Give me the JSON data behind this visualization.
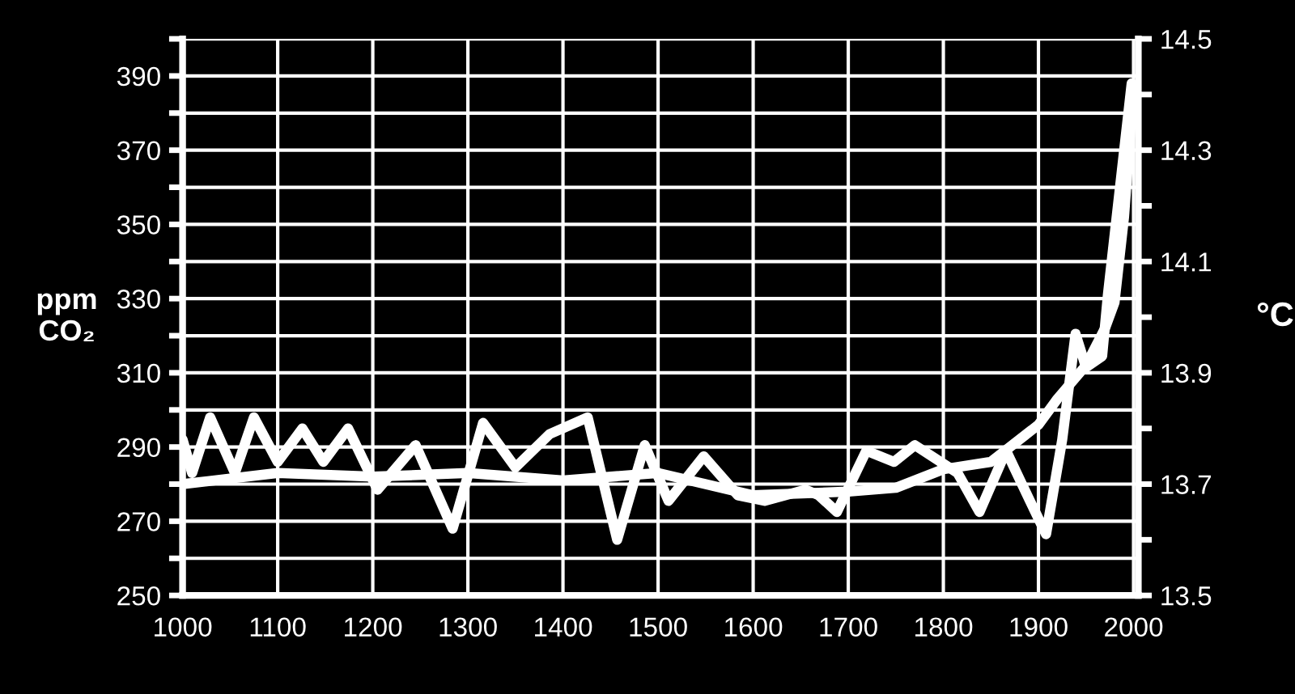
{
  "chart_data": {
    "type": "line",
    "ylabel": "ppm\nCO₂",
    "y2label": "°C",
    "xlim": [
      1000,
      2005
    ],
    "xticks": [
      1000,
      1100,
      1200,
      1300,
      1400,
      1500,
      1600,
      1700,
      1800,
      1900,
      2000
    ],
    "ylim": [
      250,
      400
    ],
    "yticks": [
      250,
      {
        "value": 260,
        "label": null
      },
      270,
      {
        "value": 280,
        "label": null
      },
      290,
      {
        "value": 300,
        "label": null
      },
      310,
      {
        "value": 320,
        "label": null
      },
      330,
      {
        "value": 340,
        "label": null
      },
      350,
      {
        "value": 360,
        "label": null
      },
      370,
      {
        "value": 380,
        "label": null
      },
      390,
      {
        "value": 400,
        "label": null
      }
    ],
    "y2lim": [
      13.5,
      14.5
    ],
    "y2ticks": [
      13.5,
      {
        "value": 13.6,
        "label": null
      },
      13.7,
      {
        "value": 13.8,
        "label": null
      },
      13.9,
      {
        "value": 14.0,
        "label": null
      },
      14.1,
      {
        "value": 14.2,
        "label": null
      },
      14.3,
      {
        "value": 14.4,
        "label": null
      },
      14.5
    ],
    "grid": true,
    "marker": "none",
    "line_style": "solid",
    "series": [
      {
        "color": "#ffffff",
        "x": [
          1000,
          1100,
          1200,
          1300,
          1400,
          1500,
          1600,
          1700,
          1750,
          1800,
          1850,
          1900,
          1920,
          1950,
          1970,
          1980,
          1990,
          2000
        ],
        "values": [
          280,
          283,
          282,
          283,
          281,
          283,
          277,
          278,
          279,
          284,
          286,
          296,
          303,
          312,
          322,
          329,
          352,
          387
        ]
      },
      {
        "color": "#ffffff",
        "axis": "y2",
        "x": [
          1000,
          1010,
          1029,
          1055,
          1075,
          1100,
          1126,
          1148,
          1174,
          1205,
          1245,
          1284,
          1316,
          1350,
          1386,
          1426,
          1457,
          1486,
          1511,
          1548,
          1584,
          1612,
          1655,
          1669,
          1688,
          1719,
          1748,
          1770,
          1815,
          1838,
          1866,
          1891,
          1908,
          1925,
          1939,
          1950,
          1967,
          1973,
          1998
        ],
        "values": [
          13.78,
          13.72,
          13.82,
          13.72,
          13.82,
          13.74,
          13.8,
          13.74,
          13.8,
          13.69,
          13.77,
          13.62,
          13.81,
          13.73,
          13.79,
          13.82,
          13.6,
          13.77,
          13.67,
          13.75,
          13.68,
          13.67,
          13.69,
          13.68,
          13.65,
          13.76,
          13.74,
          13.77,
          13.72,
          13.65,
          13.76,
          13.67,
          13.61,
          13.78,
          13.97,
          13.91,
          13.93,
          14.04,
          14.42
        ]
      }
    ]
  }
}
